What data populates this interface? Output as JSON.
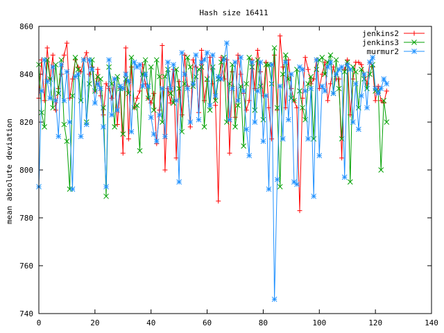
{
  "chart_data": {
    "type": "line",
    "title": "Hash size 16411",
    "xlabel": "",
    "ylabel": "mean absolute deviation",
    "xlim": [
      0,
      140
    ],
    "ylim": [
      740,
      860
    ],
    "xticks": [
      0,
      20,
      40,
      60,
      80,
      100,
      120,
      140
    ],
    "yticks": [
      740,
      760,
      780,
      800,
      820,
      840,
      860
    ],
    "legend_position": "top-right",
    "grid": false,
    "series": [
      {
        "name": "jenkins2",
        "color": "#ff0000",
        "marker": "plus",
        "values": [
          830,
          846,
          829,
          851,
          838,
          848,
          825,
          834,
          840,
          848,
          853,
          830,
          838,
          846,
          843,
          841,
          846,
          849,
          840,
          843,
          833,
          842,
          831,
          823,
          836,
          834,
          830,
          838,
          819,
          834,
          807,
          851,
          813,
          843,
          826,
          830,
          833,
          844,
          836,
          830,
          828,
          832,
          811,
          825,
          852,
          800,
          834,
          828,
          842,
          805,
          837,
          823,
          848,
          835,
          818,
          846,
          843,
          824,
          850,
          829,
          837,
          847,
          836,
          827,
          787,
          847,
          838,
          846,
          807,
          841,
          822,
          848,
          840,
          832,
          825,
          829,
          846,
          834,
          850,
          841,
          831,
          845,
          826,
          813,
          848,
          825,
          856,
          843,
          826,
          846,
          834,
          829,
          826,
          783,
          830,
          847,
          842,
          836,
          838,
          846,
          834,
          840,
          845,
          829,
          836,
          843,
          838,
          838,
          805,
          842,
          846,
          823,
          838,
          845,
          845,
          844,
          840,
          836,
          845,
          843,
          829,
          835,
          829,
          828,
          833
        ],
        "values_step_x": 1
      },
      {
        "name": "jenkins3",
        "color": "#00a000",
        "marker": "cross",
        "values": [
          844,
          824,
          818,
          846,
          838,
          826,
          844,
          832,
          846,
          819,
          812,
          792,
          831,
          847,
          842,
          829,
          846,
          820,
          836,
          846,
          833,
          839,
          838,
          826,
          789,
          843,
          836,
          818,
          839,
          834,
          815,
          838,
          832,
          847,
          826,
          827,
          808,
          840,
          846,
          830,
          843,
          825,
          846,
          839,
          820,
          839,
          842,
          832,
          828,
          842,
          834,
          816,
          836,
          847,
          843,
          835,
          839,
          842,
          843,
          818,
          838,
          825,
          843,
          829,
          838,
          845,
          847,
          820,
          836,
          844,
          818,
          827,
          835,
          810,
          836,
          847,
          843,
          825,
          846,
          835,
          821,
          844,
          844,
          836,
          851,
          826,
          793,
          840,
          848,
          838,
          830,
          829,
          842,
          833,
          826,
          821,
          836,
          839,
          813,
          842,
          846,
          847,
          840,
          845,
          848,
          832,
          846,
          834,
          813,
          841,
          845,
          795,
          843,
          841,
          826,
          842,
          838,
          834,
          840,
          844,
          833,
          833,
          800,
          829,
          820
        ],
        "values_step_x": 1
      },
      {
        "name": "murmur2",
        "color": "#1e90ff",
        "marker": "star",
        "values": [
          793,
          833,
          846,
          837,
          830,
          843,
          829,
          814,
          844,
          829,
          841,
          820,
          792,
          839,
          840,
          814,
          846,
          819,
          846,
          842,
          828,
          836,
          834,
          818,
          793,
          846,
          823,
          838,
          825,
          835,
          834,
          840,
          837,
          816,
          845,
          843,
          844,
          835,
          840,
          835,
          822,
          815,
          812,
          823,
          834,
          814,
          845,
          834,
          844,
          829,
          795,
          849,
          840,
          834,
          820,
          836,
          848,
          821,
          845,
          846,
          849,
          827,
          848,
          831,
          839,
          838,
          846,
          853,
          821,
          834,
          845,
          829,
          847,
          833,
          817,
          806,
          845,
          820,
          833,
          845,
          812,
          831,
          792,
          844,
          746,
          796,
          835,
          813,
          845,
          821,
          840,
          795,
          794,
          843,
          842,
          833,
          813,
          834,
          789,
          846,
          806,
          835,
          833,
          843,
          845,
          832,
          840,
          842,
          843,
          797,
          844,
          842,
          820,
          836,
          817,
          831,
          840,
          826,
          845,
          847,
          834,
          832,
          834,
          838,
          836
        ],
        "values_step_x": 1
      }
    ]
  }
}
